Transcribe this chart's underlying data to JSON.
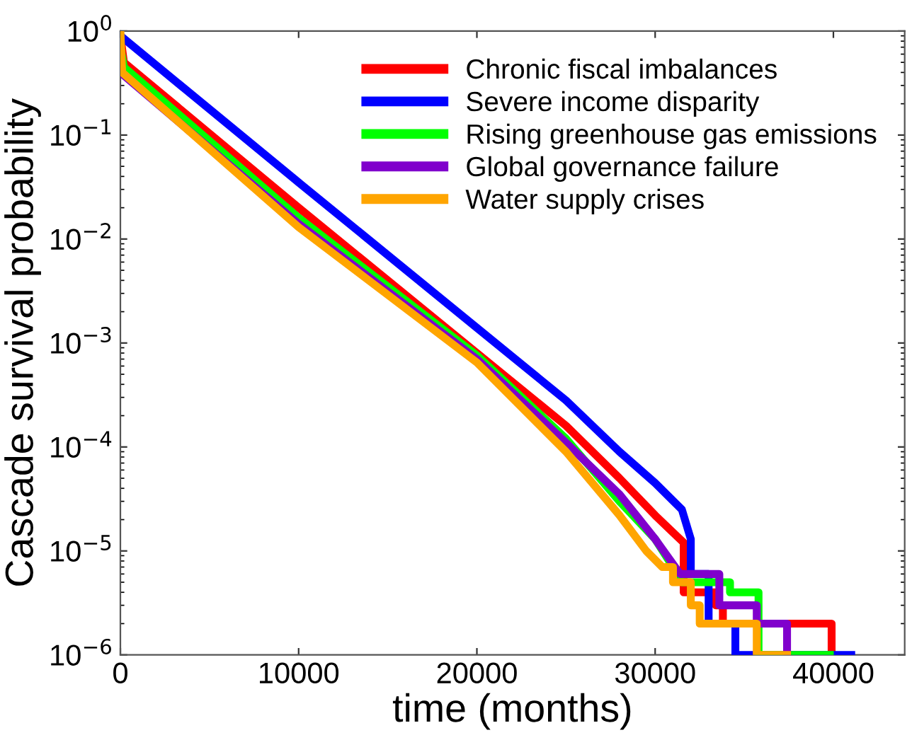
{
  "chart_data": {
    "type": "line",
    "xlabel": "time (months)",
    "ylabel": "Cascade survival probability",
    "log": "y",
    "xlim": [
      0,
      44000
    ],
    "xticks": [
      0,
      10000,
      20000,
      30000,
      40000
    ],
    "ylim": [
      1e-06,
      1
    ],
    "yticks": [
      {
        "value": 1,
        "label": "10$^{0}$"
      },
      {
        "value": 0.1,
        "label": "10$^{−1}$"
      },
      {
        "value": 0.01,
        "label": "10$^{−2}$"
      },
      {
        "value": 0.001,
        "label": "10$^{−3}$"
      },
      {
        "value": 0.0001,
        "label": "10$^{−4}$"
      },
      {
        "value": 1e-05,
        "label": "10$^{−5}$"
      },
      {
        "value": 1e-06,
        "label": "10$^{−6}$"
      }
    ],
    "grid": false,
    "legend": "top right",
    "marker": "none",
    "line_style": "solid",
    "series": [
      {
        "name": "Chronic fiscal imbalances",
        "color": "#ff0000",
        "x": [
          0,
          200,
          10000,
          20000,
          25000,
          28000,
          30000,
          31600,
          31600,
          33400,
          33400,
          33800,
          33800,
          39900,
          39900
        ],
        "values": [
          0.9,
          0.5,
          0.02,
          0.0008,
          0.00016,
          5e-05,
          2.2e-05,
          1.2e-05,
          4e-06,
          4e-06,
          3e-06,
          3e-06,
          2e-06,
          2e-06,
          1e-06
        ]
      },
      {
        "name": "Severe income disparity",
        "color": "#0000ff",
        "x": [
          0,
          10000,
          20000,
          25000,
          28000,
          30000,
          31500,
          32000,
          32000,
          33000,
          33000,
          34500,
          34500,
          41000
        ],
        "values": [
          0.9,
          0.035,
          0.0014,
          0.00028,
          9e-05,
          4.5e-05,
          2.5e-05,
          1.3e-05,
          6e-06,
          6e-06,
          2e-06,
          2e-06,
          1e-06,
          1e-06
        ]
      },
      {
        "name": "Rising greenhouse gas emissions",
        "color": "#00ff00",
        "x": [
          0,
          200,
          10000,
          20000,
          25000,
          28000,
          30000,
          31000,
          31500,
          34200,
          34200,
          35800,
          35800,
          39800
        ],
        "values": [
          0.7,
          0.45,
          0.016,
          0.00076,
          0.00012,
          3e-05,
          1.3e-05,
          7e-06,
          5e-06,
          5e-06,
          4e-06,
          4e-06,
          1e-06,
          1e-06
        ]
      },
      {
        "name": "Global governance failure",
        "color": "#8000cc",
        "x": [
          0,
          10000,
          20000,
          25000,
          28000,
          30000,
          31400,
          33600,
          33600,
          35700,
          35700,
          37400,
          37400
        ],
        "values": [
          0.4,
          0.014,
          0.0007,
          0.00011,
          3.5e-05,
          1.3e-05,
          6e-06,
          6e-06,
          3e-06,
          3e-06,
          2e-06,
          2e-06,
          1e-06
        ]
      },
      {
        "name": "Water supply crises",
        "color": "#ffa500",
        "x": [
          0,
          100,
          10000,
          20000,
          25000,
          28000,
          29500,
          30400,
          31000,
          31000,
          32000,
          32000,
          32500,
          32500,
          35700,
          35700,
          37400
        ],
        "values": [
          1.0,
          0.4,
          0.013,
          0.00065,
          9e-05,
          2.2e-05,
          1e-05,
          7e-06,
          7e-06,
          5e-06,
          5e-06,
          3e-06,
          3e-06,
          2e-06,
          2e-06,
          1e-06,
          1e-06
        ]
      }
    ]
  }
}
